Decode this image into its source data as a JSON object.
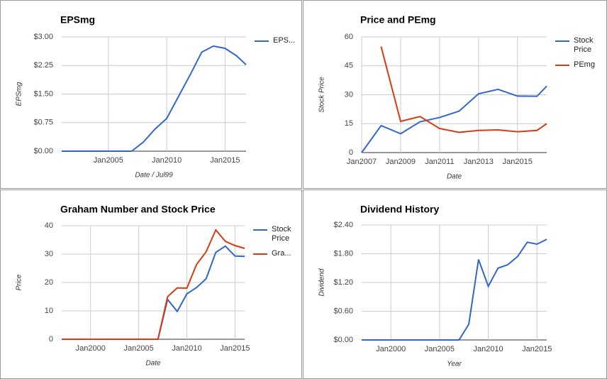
{
  "chart_data": [
    {
      "type": "line",
      "title": "EPSmg",
      "xlabel": "Date / Jul99",
      "ylabel": "EPSmg",
      "legend": "right",
      "grid": true,
      "x": [
        2001,
        2002,
        2003,
        2004,
        2005,
        2006,
        2007,
        2008,
        2009,
        2010,
        2011,
        2012,
        2013,
        2014,
        2015,
        2016,
        2016.8
      ],
      "series": [
        {
          "name": "EPS...",
          "color": "#3366cc",
          "values": [
            0,
            0,
            0,
            0,
            0,
            0,
            0,
            0.24,
            0.58,
            0.86,
            1.43,
            2.0,
            2.6,
            2.76,
            2.7,
            2.5,
            2.27
          ]
        }
      ],
      "xlim": [
        2001,
        2016.8
      ],
      "xticks": [
        {
          "value": 2005,
          "label": "Jan2005"
        },
        {
          "value": 2010,
          "label": "Jan2010"
        },
        {
          "value": 2015,
          "label": "Jan2015"
        }
      ],
      "ylim": [
        0,
        3
      ],
      "yticks": [
        {
          "value": 0,
          "label": "$0.00"
        },
        {
          "value": 0.75,
          "label": "$0.75"
        },
        {
          "value": 1.5,
          "label": "$1.50"
        },
        {
          "value": 2.25,
          "label": "$2.25"
        },
        {
          "value": 3,
          "label": "$3.00"
        }
      ]
    },
    {
      "type": "line",
      "title": "Price and PEmg",
      "xlabel": "Date",
      "ylabel": "Stock Price",
      "legend": "right",
      "grid": true,
      "x": [
        2007,
        2008,
        2009,
        2010,
        2011,
        2012,
        2013,
        2014,
        2015,
        2016,
        2016.5
      ],
      "series": [
        {
          "name": "Stock Price",
          "color": "#3366cc",
          "values": [
            0,
            14,
            9.8,
            16,
            18.2,
            21.5,
            30.5,
            32.8,
            29.3,
            29.2,
            34.5
          ]
        },
        {
          "name": "PEmg",
          "color": "#dc3912",
          "values": [
            null,
            55,
            16.2,
            18.7,
            12.5,
            10.5,
            11.5,
            11.8,
            10.8,
            11.5,
            15
          ]
        }
      ],
      "xlim": [
        2007,
        2016.5
      ],
      "xticks": [
        {
          "value": 2007,
          "label": "Jan2007"
        },
        {
          "value": 2009,
          "label": "Jan2009"
        },
        {
          "value": 2011,
          "label": "Jan2011"
        },
        {
          "value": 2013,
          "label": "Jan2013"
        },
        {
          "value": 2015,
          "label": "Jan2015"
        }
      ],
      "ylim": [
        0,
        60
      ],
      "yticks": [
        0,
        15,
        30,
        45,
        60
      ]
    },
    {
      "type": "line",
      "title": "Graham Number and Stock Price",
      "xlabel": "Date",
      "ylabel": "Price",
      "legend": "right",
      "grid": true,
      "x": [
        1997,
        1998,
        1999,
        2000,
        2001,
        2002,
        2003,
        2004,
        2005,
        2006,
        2007,
        2008,
        2009,
        2010,
        2011,
        2012,
        2013,
        2014,
        2015,
        2016
      ],
      "series": [
        {
          "name": "Stock Price",
          "color": "#3366cc",
          "values": [
            0,
            0,
            0,
            0,
            0,
            0,
            0,
            0,
            0,
            0,
            0,
            14,
            9.8,
            16,
            18.2,
            21.3,
            30.6,
            32.8,
            29.3,
            29.2
          ]
        },
        {
          "name": "Gra...",
          "color": "#dc3912",
          "values": [
            0,
            0,
            0,
            0,
            0,
            0,
            0,
            0,
            0,
            0,
            0,
            15,
            18.1,
            18,
            26.3,
            30.8,
            38.5,
            34.5,
            33,
            32
          ]
        }
      ],
      "xlim": [
        1997,
        2016
      ],
      "xticks": [
        {
          "value": 2000,
          "label": "Jan2000"
        },
        {
          "value": 2005,
          "label": "Jan2005"
        },
        {
          "value": 2010,
          "label": "Jan2010"
        },
        {
          "value": 2015,
          "label": "Jan2015"
        }
      ],
      "ylim": [
        0,
        40
      ],
      "yticks": [
        0,
        10,
        20,
        30,
        40
      ]
    },
    {
      "type": "line",
      "title": "Dividend History",
      "xlabel": "Year",
      "ylabel": "Dividend",
      "legend": null,
      "grid": true,
      "x": [
        1997,
        1998,
        1999,
        2000,
        2001,
        2002,
        2003,
        2004,
        2005,
        2006,
        2007,
        2008,
        2009,
        2010,
        2011,
        2012,
        2013,
        2014,
        2015,
        2016
      ],
      "series": [
        {
          "name": "Dividend",
          "color": "#3366cc",
          "values": [
            0,
            0,
            0,
            0,
            0,
            0,
            0,
            0,
            0,
            0,
            0,
            0.33,
            1.68,
            1.12,
            1.5,
            1.57,
            1.74,
            2.04,
            2.0,
            2.1
          ]
        }
      ],
      "xlim": [
        1997,
        2016
      ],
      "xticks": [
        {
          "value": 2000,
          "label": "Jan2000"
        },
        {
          "value": 2005,
          "label": "Jan2005"
        },
        {
          "value": 2010,
          "label": "Jan2010"
        },
        {
          "value": 2015,
          "label": "Jan2015"
        }
      ],
      "ylim": [
        0,
        2.4
      ],
      "yticks": [
        {
          "value": 0,
          "label": "$0.00"
        },
        {
          "value": 0.6,
          "label": "$0.60"
        },
        {
          "value": 1.2,
          "label": "$1.20"
        },
        {
          "value": 1.8,
          "label": "$1.80"
        },
        {
          "value": 2.4,
          "label": "$2.40"
        }
      ]
    }
  ]
}
